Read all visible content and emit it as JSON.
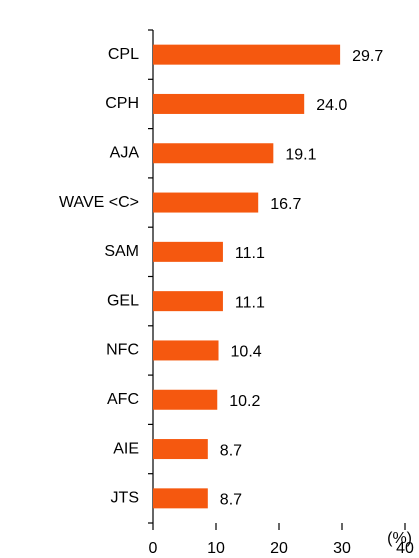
{
  "chart_data": {
    "type": "bar",
    "orientation": "horizontal",
    "categories": [
      "CPL",
      "CPH",
      "AJA",
      "WAVE <C>",
      "SAM",
      "GEL",
      "NFC",
      "AFC",
      "AIE",
      "JTS"
    ],
    "values": [
      29.7,
      24.0,
      19.1,
      16.7,
      11.1,
      11.1,
      10.4,
      10.2,
      8.7,
      8.7
    ],
    "value_labels": [
      "29.7",
      "24.0",
      "19.1",
      "16.7",
      "11.1",
      "11.1",
      "10.4",
      "10.2",
      "8.7",
      "8.7"
    ],
    "color": "#f5580f",
    "xlim": [
      0,
      40
    ],
    "xticks": [
      0,
      10,
      20,
      30,
      40
    ],
    "unit": "(%)"
  }
}
